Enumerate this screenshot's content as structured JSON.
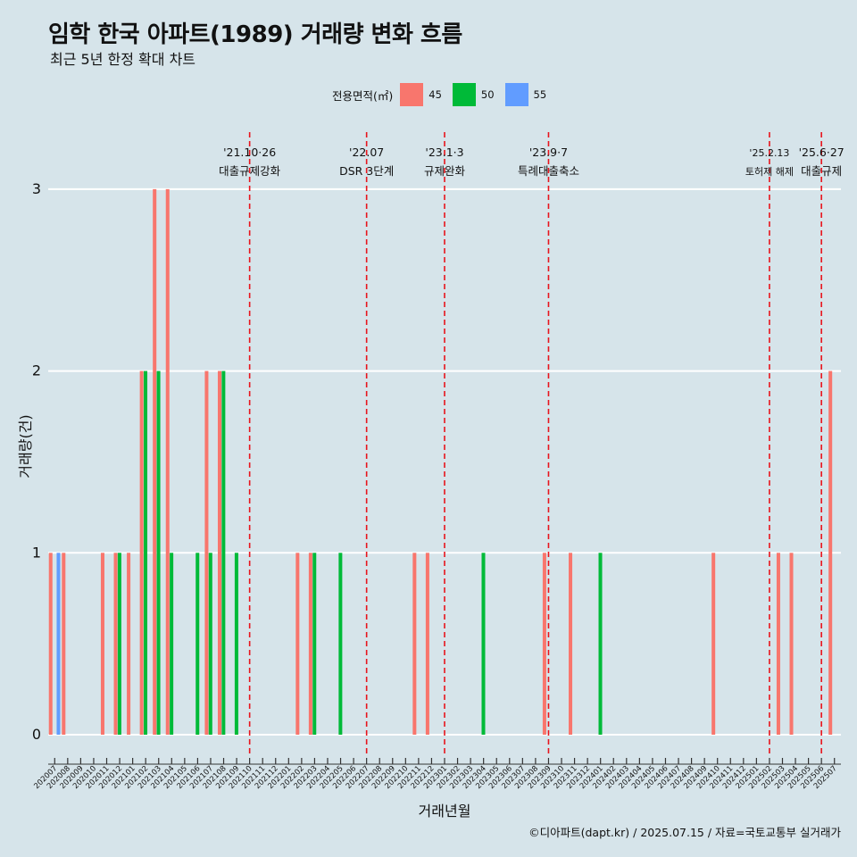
{
  "title": "임학 한국 아파트(1989) 거래량 변화 흐름",
  "subtitle": "최근 5년 한정 확대 차트",
  "caption": "©디아파트(dapt.kr) / 2025.07.15 / 자료=국토교통부 실거래가",
  "colors": {
    "s45": "#f8766d",
    "s50": "#00ba38",
    "s55": "#619cff",
    "event_line": "#e8141c",
    "grid": "#ffffff"
  },
  "legend": {
    "title": "전용면적(㎡)",
    "items": [
      {
        "label": "45",
        "color": "#f8766d"
      },
      {
        "label": "50",
        "color": "#00ba38"
      },
      {
        "label": "55",
        "color": "#619cff"
      }
    ]
  },
  "chart_data": {
    "type": "bar",
    "xlabel": "거래년월",
    "ylabel": "거래량(건)",
    "ylim": [
      0,
      3
    ],
    "yticks": [
      0,
      1,
      2,
      3
    ],
    "categories": [
      "202007",
      "202008",
      "202009",
      "202010",
      "202011",
      "202012",
      "202101",
      "202102",
      "202103",
      "202104",
      "202105",
      "202106",
      "202107",
      "202108",
      "202109",
      "202110",
      "202111",
      "202112",
      "202201",
      "202202",
      "202203",
      "202204",
      "202205",
      "202206",
      "202207",
      "202208",
      "202209",
      "202210",
      "202211",
      "202212",
      "202301",
      "202302",
      "202303",
      "202304",
      "202305",
      "202306",
      "202307",
      "202308",
      "202309",
      "202310",
      "202311",
      "202312",
      "202401",
      "202402",
      "202403",
      "202404",
      "202405",
      "202406",
      "202407",
      "202408",
      "202409",
      "202410",
      "202411",
      "202412",
      "202501",
      "202502",
      "202503",
      "202504",
      "202505",
      "202506",
      "202507"
    ],
    "series": [
      {
        "name": "45",
        "values": [
          1,
          1,
          0,
          0,
          1,
          1,
          1,
          2,
          3,
          3,
          0,
          0,
          2,
          2,
          0,
          0,
          0,
          0,
          0,
          1,
          1,
          0,
          0,
          0,
          0,
          0,
          0,
          0,
          1,
          1,
          0,
          0,
          0,
          0,
          0,
          0,
          0,
          0,
          1,
          0,
          1,
          0,
          0,
          0,
          0,
          0,
          0,
          0,
          0,
          0,
          0,
          1,
          0,
          0,
          0,
          0,
          1,
          1,
          0,
          0,
          2
        ]
      },
      {
        "name": "50",
        "values": [
          0,
          0,
          0,
          0,
          0,
          1,
          0,
          2,
          2,
          1,
          0,
          1,
          1,
          2,
          1,
          0,
          0,
          0,
          0,
          0,
          1,
          0,
          1,
          0,
          0,
          0,
          0,
          0,
          0,
          0,
          0,
          0,
          0,
          1,
          0,
          0,
          0,
          0,
          0,
          0,
          0,
          0,
          1,
          0,
          0,
          0,
          0,
          0,
          0,
          0,
          0,
          0,
          0,
          0,
          0,
          0,
          0,
          0,
          0,
          0,
          0
        ]
      },
      {
        "name": "55",
        "values": [
          1,
          0,
          0,
          0,
          0,
          0,
          0,
          0,
          0,
          0,
          0,
          0,
          0,
          0,
          0,
          0,
          0,
          0,
          0,
          0,
          0,
          0,
          0,
          0,
          0,
          0,
          0,
          0,
          0,
          0,
          0,
          0,
          0,
          0,
          0,
          0,
          0,
          0,
          0,
          0,
          0,
          0,
          0,
          0,
          0,
          0,
          0,
          0,
          0,
          0,
          0,
          0,
          0,
          0,
          0,
          0,
          0,
          0,
          0,
          0,
          0
        ]
      }
    ],
    "events": [
      {
        "month": "202110",
        "date": "'21.10·26",
        "label": "대출규제강화"
      },
      {
        "month": "202207",
        "date": "'22.07",
        "label": "DSR 3단계"
      },
      {
        "month": "202301",
        "date": "'23.1·3",
        "label": "규제완화"
      },
      {
        "month": "202309",
        "date": "'23.9·7",
        "label": "특례대출축소"
      },
      {
        "month": "202502",
        "date": "'25.2.13",
        "label": "토허제 해제"
      },
      {
        "month": "202506",
        "date": "'25.6·27",
        "label": "대출규제"
      }
    ],
    "grid": true,
    "legend_position": "top"
  }
}
